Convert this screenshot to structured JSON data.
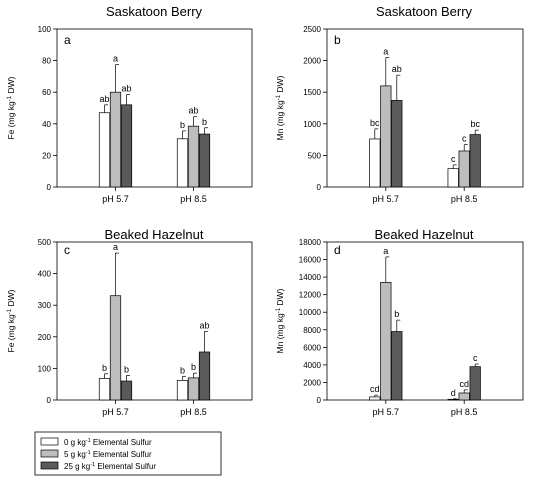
{
  "colors": {
    "s0": "#ffffff",
    "s5": "#bdbdbd",
    "s25": "#5a5a5a",
    "axis": "#000000"
  },
  "legend": {
    "placement": "bottom-left",
    "entries": [
      {
        "key": "s0",
        "prefix": "0 g kg",
        "suffix": " Elemental Sulfur"
      },
      {
        "key": "s5",
        "prefix": "5 g kg",
        "suffix": " Elemental Sulfur"
      },
      {
        "key": "s25",
        "prefix": "25 g kg",
        "suffix": " Elemental Sulfur"
      }
    ]
  },
  "chart_data": [
    {
      "type": "bar",
      "panel": "a",
      "title": "Saskatoon Berry",
      "ylabel_main": "Fe (mg kg",
      "ylabel_exp": "-1",
      "ylabel_tail": " DW)",
      "categories": [
        "pH 5.7",
        "pH 8.5"
      ],
      "ylim": [
        0,
        100
      ],
      "yticks": [
        0,
        20,
        40,
        60,
        80,
        100
      ],
      "series": [
        {
          "key": "s0",
          "values": [
            47,
            30.5
          ],
          "errors": [
            5,
            5
          ],
          "letters": [
            "ab",
            "b"
          ]
        },
        {
          "key": "s5",
          "values": [
            60,
            38.5
          ],
          "errors": [
            17.5,
            6
          ],
          "letters": [
            "a",
            "ab"
          ]
        },
        {
          "key": "s25",
          "values": [
            52,
            33.5
          ],
          "errors": [
            6.5,
            4
          ],
          "letters": [
            "ab",
            "b"
          ]
        }
      ]
    },
    {
      "type": "bar",
      "panel": "b",
      "title": "Saskatoon Berry",
      "ylabel_main": "Mn (mg kg",
      "ylabel_exp": "-1",
      "ylabel_tail": " DW)",
      "categories": [
        "pH 5.7",
        "pH 8.5"
      ],
      "ylim": [
        0,
        2500
      ],
      "yticks": [
        0,
        500,
        1000,
        1500,
        2000,
        2500
      ],
      "series": [
        {
          "key": "s0",
          "values": [
            760,
            290
          ],
          "errors": [
            160,
            60
          ],
          "letters": [
            "bc",
            "c"
          ]
        },
        {
          "key": "s5",
          "values": [
            1600,
            570
          ],
          "errors": [
            450,
            100
          ],
          "letters": [
            "a",
            "c"
          ]
        },
        {
          "key": "s25",
          "values": [
            1370,
            830
          ],
          "errors": [
            400,
            70
          ],
          "letters": [
            "ab",
            "bc"
          ]
        }
      ]
    },
    {
      "type": "bar",
      "panel": "c",
      "title": "Beaked Hazelnut",
      "ylabel_main": "Fe (mg kg",
      "ylabel_exp": "-1",
      "ylabel_tail": " DW)",
      "categories": [
        "pH 5.7",
        "pH 8.5"
      ],
      "ylim": [
        0,
        500
      ],
      "yticks": [
        0,
        100,
        200,
        300,
        400,
        500
      ],
      "series": [
        {
          "key": "s0",
          "values": [
            68,
            62
          ],
          "errors": [
            15,
            13
          ],
          "letters": [
            "b",
            "b"
          ]
        },
        {
          "key": "s5",
          "values": [
            330,
            70
          ],
          "errors": [
            135,
            15
          ],
          "letters": [
            "a",
            "b"
          ]
        },
        {
          "key": "s25",
          "values": [
            60,
            152
          ],
          "errors": [
            18,
            65
          ],
          "letters": [
            "b",
            "ab"
          ]
        }
      ]
    },
    {
      "type": "bar",
      "panel": "d",
      "title": "Beaked Hazelnut",
      "ylabel_main": "Mn (mg kg",
      "ylabel_exp": "-1",
      "ylabel_tail": " DW)",
      "categories": [
        "pH 5.7",
        "pH 8.5"
      ],
      "ylim": [
        0,
        18000
      ],
      "yticks": [
        0,
        2000,
        4000,
        6000,
        8000,
        10000,
        12000,
        14000,
        16000,
        18000
      ],
      "series": [
        {
          "key": "s0",
          "values": [
            350,
            80
          ],
          "errors": [
            200,
            60
          ],
          "letters": [
            "cd",
            "d"
          ]
        },
        {
          "key": "s5",
          "values": [
            13400,
            800
          ],
          "errors": [
            2900,
            350
          ],
          "letters": [
            "a",
            "cd"
          ]
        },
        {
          "key": "s25",
          "values": [
            7800,
            3800
          ],
          "errors": [
            1300,
            300
          ],
          "letters": [
            "b",
            "c"
          ]
        }
      ]
    }
  ]
}
